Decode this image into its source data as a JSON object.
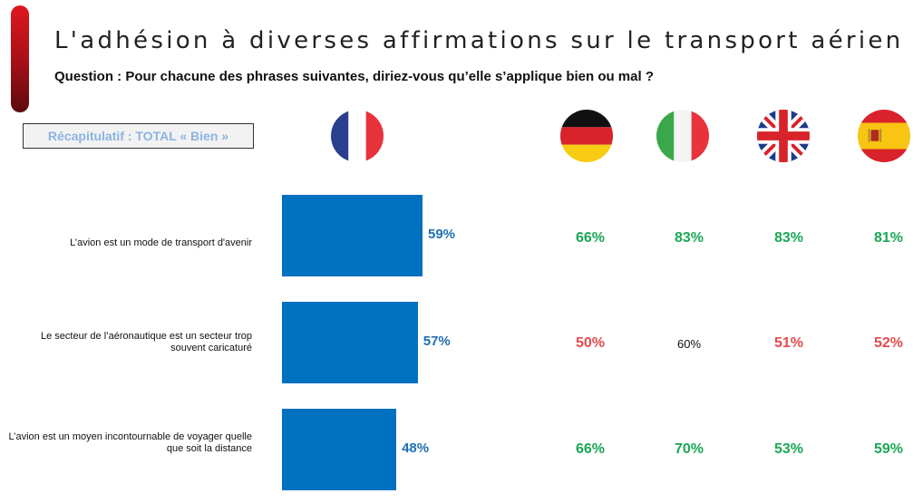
{
  "header": {
    "title": "L'adhésion à diverses affirmations sur le transport aérien",
    "question": "Question : Pour chacune des phrases suivantes, diriez-vous qu’elle s’applique bien ou mal ?",
    "recap": "Récapitulatif : TOTAL « Bien »"
  },
  "colors": {
    "bar": "#0070c0",
    "positive": "#1aa855",
    "negative": "#e14b4f",
    "neutral": "#111111",
    "accent": "#c0111a"
  },
  "flags": [
    {
      "icon": "france-flag-icon"
    },
    {
      "icon": "germany-flag-icon"
    },
    {
      "icon": "italy-flag-icon"
    },
    {
      "icon": "uk-flag-icon"
    },
    {
      "icon": "spain-flag-icon"
    }
  ],
  "chart_data": {
    "type": "bar",
    "orientation": "horizontal",
    "categories": [
      "L’avion est un mode de transport d'avenir",
      "Le secteur de l’aéronautique est un secteur trop souvent caricaturé",
      "L’avion est un moyen incontournable de voyager quelle que soit la distance"
    ],
    "values": [
      59,
      57,
      48
    ],
    "value_labels": [
      "59%",
      "57%",
      "48%"
    ],
    "xlim": [
      0,
      100
    ]
  },
  "comparison_table": [
    [
      {
        "value": "66%",
        "status": "positive"
      },
      {
        "value": "83%",
        "status": "positive"
      },
      {
        "value": "83%",
        "status": "positive"
      },
      {
        "value": "81%",
        "status": "positive"
      }
    ],
    [
      {
        "value": "50%",
        "status": "negative"
      },
      {
        "value": "60%",
        "status": "neutral"
      },
      {
        "value": "51%",
        "status": "negative"
      },
      {
        "value": "52%",
        "status": "negative"
      }
    ],
    [
      {
        "value": "66%",
        "status": "positive"
      },
      {
        "value": "70%",
        "status": "positive"
      },
      {
        "value": "53%",
        "status": "positive"
      },
      {
        "value": "59%",
        "status": "positive"
      }
    ]
  ]
}
